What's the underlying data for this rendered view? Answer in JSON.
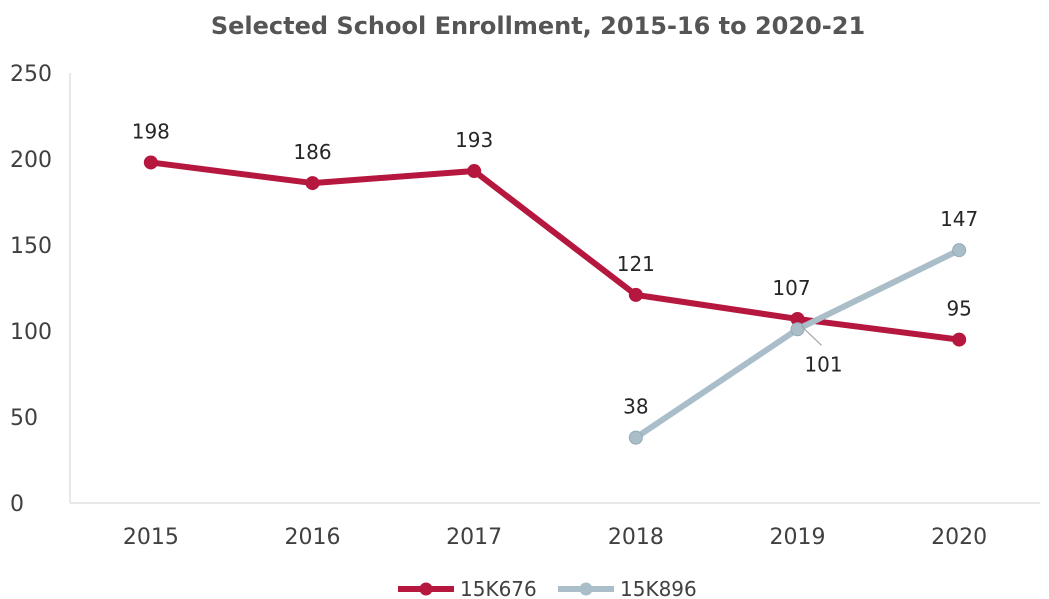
{
  "chart_data": {
    "type": "line",
    "title": "Selected School Enrollment, 2015-16 to 2020-21",
    "xlabel": "",
    "ylabel": "",
    "categories": [
      "2015",
      "2016",
      "2017",
      "2018",
      "2019",
      "2020"
    ],
    "ylim": [
      0,
      250
    ],
    "yticks": [
      "0",
      "50",
      "100",
      "150",
      "200",
      "250"
    ],
    "grid": false,
    "legend_position": "bottom",
    "series": [
      {
        "name": "15K676",
        "color": "#B5173E",
        "values": [
          198,
          186,
          193,
          121,
          107,
          95
        ],
        "labels": [
          "198",
          "186",
          "193",
          "121",
          "107",
          "95"
        ]
      },
      {
        "name": "15K896",
        "color": "#A9BEC8",
        "values": [
          null,
          null,
          null,
          38,
          101,
          147
        ],
        "labels": [
          null,
          null,
          null,
          "38",
          "101",
          "147"
        ]
      }
    ]
  }
}
